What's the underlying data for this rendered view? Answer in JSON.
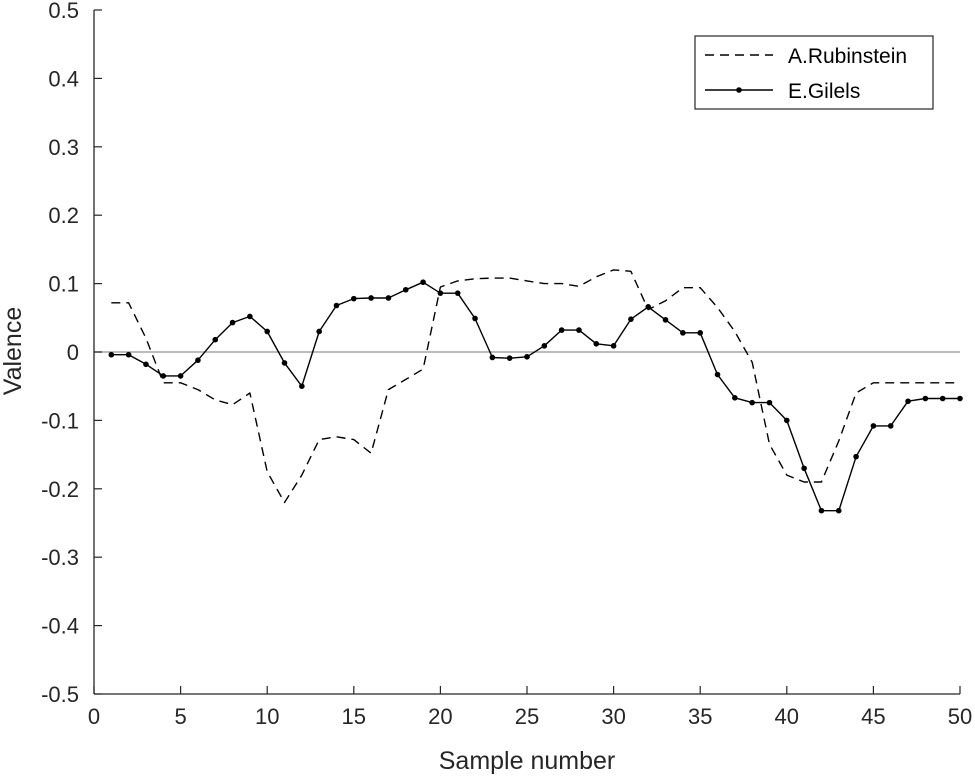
{
  "chart_data": {
    "type": "line",
    "title": "",
    "xlabel": "Sample number",
    "ylabel": "Valence",
    "xlim": [
      0,
      50
    ],
    "ylim": [
      -0.5,
      0.5
    ],
    "x_ticks": [
      0,
      5,
      10,
      15,
      20,
      25,
      30,
      35,
      40,
      45,
      50
    ],
    "x_tick_labels": [
      "0",
      "5",
      "10",
      "15",
      "20",
      "25",
      "30",
      "35",
      "40",
      "45",
      "50"
    ],
    "y_ticks": [
      -0.5,
      -0.4,
      -0.3,
      -0.2,
      -0.1,
      0,
      0.1,
      0.2,
      0.3,
      0.4,
      0.5
    ],
    "y_tick_labels": [
      "-0.5",
      "-0.4",
      "-0.3",
      "-0.2",
      "-0.1",
      "0",
      "0.1",
      "0.2",
      "0.3",
      "0.4",
      "0.5"
    ],
    "grid": false,
    "reference_line_y": 0,
    "legend_position": "top-right",
    "colors": {
      "axis": "#262626",
      "series": "#000000",
      "zero_line": "#a6a6a6"
    },
    "series": [
      {
        "name": "A.Rubinstein",
        "style": "dashed",
        "x": [
          1,
          2,
          3,
          4,
          5,
          6,
          7,
          8,
          9,
          10,
          11,
          12,
          13,
          14,
          15,
          16,
          17,
          18,
          19,
          20,
          21,
          22,
          23,
          24,
          25,
          26,
          27,
          28,
          29,
          30,
          31,
          32,
          33,
          34,
          35,
          36,
          37,
          38,
          39,
          40,
          41,
          42,
          43,
          44,
          45,
          46,
          47,
          48,
          49,
          50
        ],
        "values": [
          0.072,
          0.072,
          0.02,
          -0.045,
          -0.045,
          -0.055,
          -0.07,
          -0.077,
          -0.06,
          -0.175,
          -0.22,
          -0.18,
          -0.128,
          -0.124,
          -0.128,
          -0.148,
          -0.055,
          -0.04,
          -0.025,
          0.095,
          0.104,
          0.107,
          0.108,
          0.108,
          0.104,
          0.1,
          0.1,
          0.096,
          0.11,
          0.12,
          0.118,
          0.062,
          0.075,
          0.094,
          0.094,
          0.065,
          0.03,
          -0.015,
          -0.135,
          -0.18,
          -0.19,
          -0.19,
          -0.13,
          -0.06,
          -0.045,
          -0.045,
          -0.045,
          -0.045,
          -0.045,
          -0.045
        ]
      },
      {
        "name": "E.Gilels",
        "style": "solid-dot",
        "x": [
          1,
          2,
          3,
          4,
          5,
          6,
          7,
          8,
          9,
          10,
          11,
          12,
          13,
          14,
          15,
          16,
          17,
          18,
          19,
          20,
          21,
          22,
          23,
          24,
          25,
          26,
          27,
          28,
          29,
          30,
          31,
          32,
          33,
          34,
          35,
          36,
          37,
          38,
          39,
          40,
          41,
          42,
          43,
          44,
          45,
          46,
          47,
          48,
          49,
          50
        ],
        "values": [
          -0.004,
          -0.004,
          -0.018,
          -0.035,
          -0.035,
          -0.012,
          0.018,
          0.043,
          0.052,
          0.03,
          -0.016,
          -0.05,
          0.03,
          0.068,
          0.078,
          0.079,
          0.079,
          0.091,
          0.102,
          0.086,
          0.086,
          0.049,
          -0.008,
          -0.009,
          -0.007,
          0.009,
          0.032,
          0.032,
          0.012,
          0.009,
          0.048,
          0.066,
          0.047,
          0.028,
          0.028,
          -0.033,
          -0.067,
          -0.074,
          -0.074,
          -0.1,
          -0.17,
          -0.232,
          -0.232,
          -0.153,
          -0.108,
          -0.108,
          -0.072,
          -0.068,
          -0.068,
          -0.068
        ]
      }
    ]
  }
}
